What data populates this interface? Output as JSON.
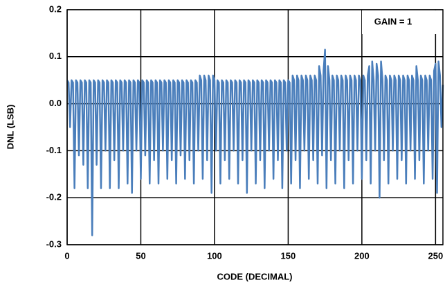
{
  "chart_data": {
    "type": "line",
    "annotation": "GAIN = 1",
    "xlabel": "CODE (DECIMAL)",
    "ylabel": "DNL (LSB)",
    "xlim": [
      0,
      255
    ],
    "xticks": [
      0,
      50,
      100,
      150,
      200,
      250
    ],
    "ylim": [
      -0.3,
      0.2
    ],
    "yticks": [
      {
        "value": 0.2,
        "label": "0.2"
      },
      {
        "value": 0.1,
        "label": "0.1"
      },
      {
        "value": 0,
        "label": "0.0"
      },
      {
        "value": -0.1,
        "label": "-0.1"
      },
      {
        "value": -0.2,
        "label": "-0.2"
      },
      {
        "value": -0.3,
        "label": "-0.3"
      }
    ],
    "grid": true,
    "x": [
      0,
      1,
      2,
      3,
      4,
      5,
      6,
      7,
      8,
      9,
      10,
      11,
      12,
      13,
      14,
      15,
      16,
      17,
      18,
      19,
      20,
      21,
      22,
      23,
      24,
      25,
      26,
      27,
      28,
      29,
      30,
      31,
      32,
      33,
      34,
      35,
      36,
      37,
      38,
      39,
      40,
      41,
      42,
      43,
      44,
      45,
      46,
      47,
      48,
      49,
      50,
      51,
      52,
      53,
      54,
      55,
      56,
      57,
      58,
      59,
      60,
      61,
      62,
      63,
      64,
      65,
      66,
      67,
      68,
      69,
      70,
      71,
      72,
      73,
      74,
      75,
      76,
      77,
      78,
      79,
      80,
      81,
      82,
      83,
      84,
      85,
      86,
      87,
      88,
      89,
      90,
      91,
      92,
      93,
      94,
      95,
      96,
      97,
      98,
      99,
      100,
      101,
      102,
      103,
      104,
      105,
      106,
      107,
      108,
      109,
      110,
      111,
      112,
      113,
      114,
      115,
      116,
      117,
      118,
      119,
      120,
      121,
      122,
      123,
      124,
      125,
      126,
      127,
      128,
      129,
      130,
      131,
      132,
      133,
      134,
      135,
      136,
      137,
      138,
      139,
      140,
      141,
      142,
      143,
      144,
      145,
      146,
      147,
      148,
      149,
      150,
      151,
      152,
      153,
      154,
      155,
      156,
      157,
      158,
      159,
      160,
      161,
      162,
      163,
      164,
      165,
      166,
      167,
      168,
      169,
      170,
      171,
      172,
      173,
      174,
      175,
      176,
      177,
      178,
      179,
      180,
      181,
      182,
      183,
      184,
      185,
      186,
      187,
      188,
      189,
      190,
      191,
      192,
      193,
      194,
      195,
      196,
      197,
      198,
      199,
      200,
      201,
      202,
      203,
      204,
      205,
      206,
      207,
      208,
      209,
      210,
      211,
      212,
      213,
      214,
      215,
      216,
      217,
      218,
      219,
      220,
      221,
      222,
      223,
      224,
      225,
      226,
      227,
      228,
      229,
      230,
      231,
      232,
      233,
      234,
      235,
      236,
      237,
      238,
      239,
      240,
      241,
      242,
      243,
      244,
      245,
      246,
      247,
      248,
      249,
      250,
      251,
      252,
      253,
      254,
      255
    ],
    "series": [
      {
        "color": "#4a7ebb",
        "values": [
          0.05,
          0.045,
          -0.05,
          0.05,
          0.045,
          -0.18,
          0.05,
          0.045,
          -0.11,
          0.05,
          0.045,
          -0.13,
          0.05,
          0.045,
          -0.18,
          0.05,
          0.045,
          -0.28,
          0.05,
          0.045,
          -0.13,
          0.05,
          0.045,
          -0.18,
          0.05,
          0.045,
          -0.1,
          0.05,
          0.045,
          -0.18,
          0.05,
          0.045,
          -0.12,
          0.05,
          0.045,
          -0.18,
          0.05,
          0.045,
          -0.1,
          0.05,
          0.045,
          -0.17,
          0.05,
          0.045,
          -0.19,
          0.05,
          0.045,
          -0.1,
          0.05,
          0.045,
          -0.16,
          0.05,
          0.045,
          -0.11,
          0.05,
          0.045,
          -0.17,
          0.05,
          0.045,
          -0.12,
          0.05,
          0.045,
          -0.17,
          0.05,
          0.045,
          -0.1,
          0.05,
          0.045,
          -0.16,
          0.05,
          0.045,
          -0.12,
          0.05,
          0.045,
          -0.17,
          0.05,
          0.045,
          -0.11,
          0.05,
          0.045,
          -0.16,
          0.05,
          0.045,
          -0.12,
          0.05,
          0.045,
          -0.17,
          0.05,
          0.045,
          -0.1,
          0.06,
          0.05,
          -0.16,
          0.06,
          0.05,
          -0.12,
          0.06,
          0.05,
          -0.19,
          0.06,
          0.05,
          -0.1,
          0.05,
          0.045,
          -0.17,
          0.05,
          0.045,
          -0.12,
          0.05,
          0.045,
          -0.16,
          0.05,
          0.045,
          -0.1,
          0.05,
          0.045,
          -0.17,
          0.05,
          0.045,
          -0.12,
          0.05,
          0.045,
          -0.19,
          0.05,
          0.045,
          -0.1,
          0.05,
          0.045,
          -0.17,
          0.05,
          0.045,
          -0.12,
          0.05,
          0.045,
          -0.18,
          0.05,
          0.045,
          -0.1,
          0.05,
          0.045,
          -0.16,
          0.05,
          0.045,
          -0.12,
          0.05,
          0.045,
          -0.18,
          0.05,
          0.045,
          -0.1,
          0.05,
          0.045,
          -0.17,
          0.06,
          0.05,
          -0.12,
          0.06,
          0.05,
          -0.18,
          0.06,
          0.05,
          -0.1,
          0.06,
          0.05,
          -0.16,
          0.06,
          0.05,
          -0.12,
          0.06,
          0.05,
          -0.17,
          0.08,
          0.06,
          -0.11,
          0.07,
          0.115,
          -0.18,
          0.08,
          0.05,
          -0.12,
          0.06,
          0.05,
          -0.17,
          0.06,
          0.05,
          -0.1,
          0.06,
          0.05,
          -0.18,
          0.06,
          0.05,
          -0.12,
          0.06,
          0.05,
          -0.17,
          0.06,
          0.05,
          -0.1,
          0.06,
          0.05,
          -0.16,
          0.06,
          0.05,
          -0.12,
          0.06,
          0.08,
          -0.17,
          0.09,
          0.05,
          -0.1,
          0.085,
          0.06,
          -0.2,
          0.09,
          0.05,
          -0.12,
          0.06,
          0.05,
          -0.17,
          0.06,
          0.05,
          -0.1,
          0.06,
          0.05,
          -0.16,
          0.06,
          0.05,
          -0.12,
          0.06,
          0.05,
          -0.17,
          0.06,
          0.05,
          -0.1,
          0.06,
          0.05,
          -0.16,
          0.08,
          0.05,
          -0.12,
          0.06,
          0.05,
          -0.17,
          0.06,
          0.05,
          -0.1,
          0.06,
          0.05,
          -0.16,
          0.07,
          0.085,
          -0.19,
          0.09,
          0.06,
          -0.05,
          0.04
        ]
      }
    ]
  }
}
